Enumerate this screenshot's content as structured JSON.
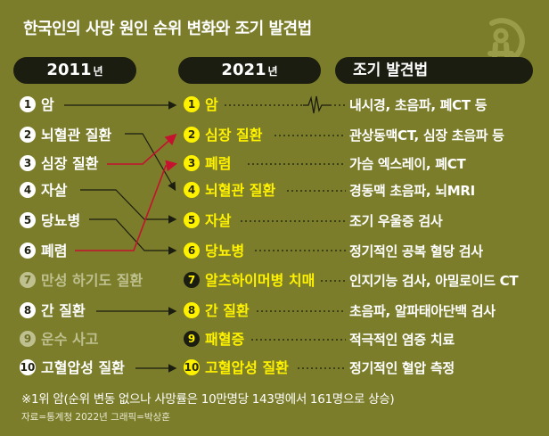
{
  "title": "한국인의 사망 원인 순위 변화와 조기 발견법",
  "headers": {
    "left_year": "2011",
    "left_suffix": "년",
    "mid_year": "2021",
    "mid_suffix": "년",
    "right": "조기 발견법"
  },
  "rank_2011": [
    {
      "num": "1",
      "label": "암"
    },
    {
      "num": "2",
      "label": "뇌혈관 질환"
    },
    {
      "num": "3",
      "label": "심장 질환"
    },
    {
      "num": "4",
      "label": "자살"
    },
    {
      "num": "5",
      "label": "당뇨병"
    },
    {
      "num": "6",
      "label": "폐렴"
    },
    {
      "num": "7",
      "label": "만성 하기도 질환"
    },
    {
      "num": "8",
      "label": "간 질환"
    },
    {
      "num": "9",
      "label": "운수 사고"
    },
    {
      "num": "10",
      "label": "고혈압성 질환"
    }
  ],
  "rank_2021": [
    {
      "num": "1",
      "label": "암"
    },
    {
      "num": "2",
      "label": "심장 질환"
    },
    {
      "num": "3",
      "label": "폐렴"
    },
    {
      "num": "4",
      "label": "뇌혈관 질환"
    },
    {
      "num": "5",
      "label": "자살"
    },
    {
      "num": "6",
      "label": "당뇨병"
    },
    {
      "num": "7",
      "label": "알츠하이머병 치매"
    },
    {
      "num": "8",
      "label": "간 질환"
    },
    {
      "num": "9",
      "label": "패혈증"
    },
    {
      "num": "10",
      "label": "고혈압성 질환"
    }
  ],
  "methods": [
    "내시경, 초음파, 폐CT 등",
    "관상동맥CT, 심장 초음파 등",
    "가슴 엑스레이, 폐CT",
    "경동맥 초음파, 뇌MRI",
    "조기 우울증 검사",
    "정기적인 공복 혈당 검사",
    "인지기능 검사, 아밀로이드 CT",
    "초음파, 알파태아단백 검사",
    "적극적인 염증 치료",
    "정기적인 혈압 측정"
  ],
  "footnote": "※1위 암(순위 변동 없으나 사망률은 10만명당 143명에서 161명으로 상승)",
  "credit": "자료=통계청 2022년    그래픽=박상훈",
  "colors": {
    "background": "#7b7d2a",
    "highlight": "#fff200",
    "arrow_red": "#c4122f",
    "dim": "#bfc08f",
    "header_bg": "#1b1d10"
  }
}
